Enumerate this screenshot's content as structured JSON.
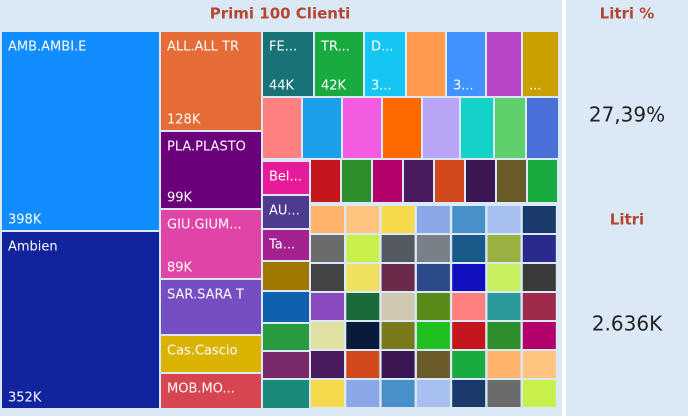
{
  "header": {
    "title": "Primi 100 Clienti"
  },
  "treemap": {
    "tiles": [
      {
        "label": "AMB.AMBI.E",
        "value_label": "398K",
        "color": "#118dff"
      },
      {
        "label": "Ambien",
        "value_label": "352K",
        "color": "#12239e"
      },
      {
        "label": "ALL.ALL TR",
        "value_label": "128K",
        "color": "#e66c37"
      },
      {
        "label": "PLA.PLASTO",
        "value_label": "99K",
        "color": "#6b007b"
      },
      {
        "label": "GIU.GIUM...",
        "value_label": "89K",
        "color": "#e044a7"
      },
      {
        "label": "SAR.SARA T",
        "color": "#744ec2"
      },
      {
        "label": "Cas.Cascio",
        "color": "#d9b300"
      },
      {
        "label": "MOB.MO...",
        "color": "#d64550"
      },
      {
        "label": "FE...",
        "value_label": "44K",
        "color": "#197278"
      },
      {
        "label": "TR...",
        "value_label": "42K",
        "color": "#1aab40"
      },
      {
        "label": "D...",
        "value_label": "3...",
        "color": "#15c6f4"
      },
      {
        "color": "#ff994e"
      },
      {
        "value_label": "3...",
        "color": "#4092ff"
      },
      {
        "color": "#b845c6"
      },
      {
        "value_label": "...",
        "color": "#c9a000"
      },
      {
        "label": "Bel...",
        "color": "#e81a9c"
      },
      {
        "label": "AU...",
        "color": "#4d3b8f"
      },
      {
        "label": "Ta...",
        "color": "#a3228f"
      }
    ]
  },
  "cards": [
    {
      "title": "Litri %",
      "value": "27,39%"
    },
    {
      "title": "Litri",
      "value": "2.636K"
    }
  ]
}
